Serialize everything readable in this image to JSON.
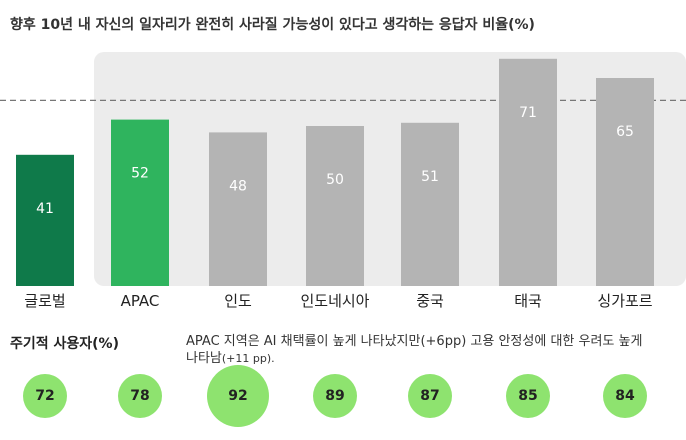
{
  "title": "향후 10년 내 자신의 일자리가 완전히 사라질 가능성이 있다고 생각하는 응답자 비율(%)",
  "chart_data": {
    "type": "bar",
    "categories": [
      "글로벌",
      "APAC",
      "인도",
      "인도네시아",
      "중국",
      "태국",
      "싱가포르"
    ],
    "values": [
      41,
      52,
      48,
      50,
      51,
      71,
      65
    ],
    "reference_line": 58,
    "ylim": [
      0,
      80
    ],
    "colors": [
      "#0f7a4a",
      "#2fb45e",
      "#b4b4b4",
      "#b4b4b4",
      "#b4b4b4",
      "#b4b4b4",
      "#b4b4b4"
    ],
    "panel_color": "#ececec"
  },
  "periodic_users": {
    "label": "주기적 사용자(%)",
    "values": [
      72,
      78,
      92,
      89,
      87,
      85,
      84
    ],
    "note_line1": "APAC 지역은 AI 채택률이 높게 나타났지만(+6pp) 고용 안정성에 대한 우려도 높게",
    "note_line2_main": "나타남",
    "note_line2_small": "(+11 pp).",
    "bubble_color": "#8ee36f"
  }
}
